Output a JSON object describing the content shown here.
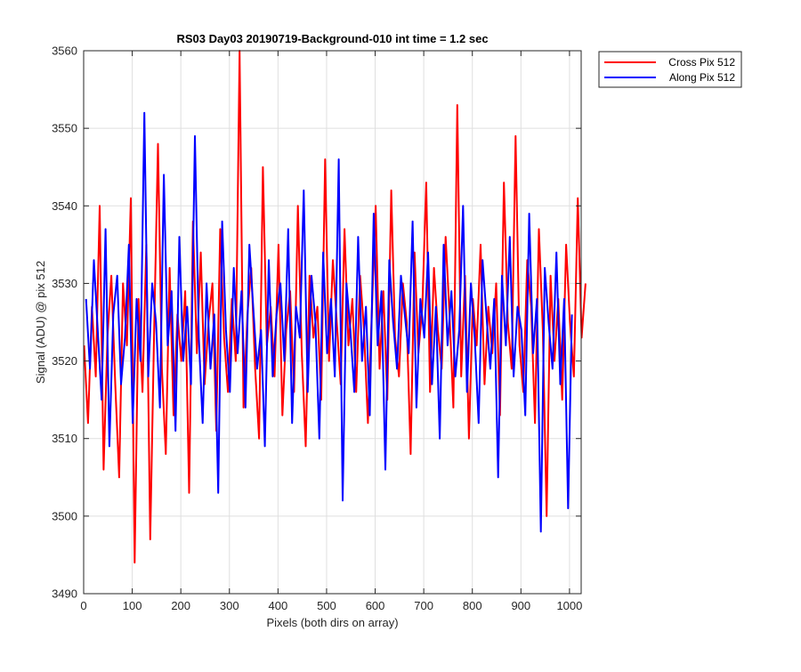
{
  "chart_data": {
    "type": "line",
    "title": "RS03 Day03 20190719-Background-010 int time = 1.2 sec",
    "xlabel": "Pixels (both dirs on array)",
    "ylabel": "Signal (ADU) @ pix 512",
    "xlim": [
      0,
      1024
    ],
    "ylim": [
      3490,
      3560
    ],
    "xticks": [
      0,
      100,
      200,
      300,
      400,
      500,
      600,
      700,
      800,
      900,
      1000
    ],
    "yticks": [
      3490,
      3500,
      3510,
      3520,
      3530,
      3540,
      3550,
      3560
    ],
    "grid": true,
    "legend_position": "outside-top-right",
    "series": [
      {
        "name": "Cross Pix 512",
        "color": "#ff0000",
        "x_start": 1,
        "x_step": 8,
        "values": [
          3522,
          3512,
          3527,
          3518,
          3540,
          3506,
          3523,
          3531,
          3517,
          3505,
          3530,
          3522,
          3541,
          3494,
          3528,
          3516,
          3535,
          3497,
          3524,
          3548,
          3519,
          3508,
          3532,
          3513,
          3526,
          3520,
          3529,
          3503,
          3538,
          3521,
          3534,
          3517,
          3525,
          3530,
          3511,
          3537,
          3523,
          3516,
          3528,
          3520,
          3560,
          3514,
          3526,
          3532,
          3519,
          3510,
          3545,
          3522,
          3527,
          3518,
          3535,
          3513,
          3524,
          3529,
          3516,
          3540,
          3521,
          3509,
          3531,
          3523,
          3527,
          3515,
          3546,
          3520,
          3533,
          3525,
          3517,
          3537,
          3522,
          3528,
          3516,
          3531,
          3524,
          3512,
          3526,
          3540,
          3519,
          3529,
          3515,
          3542,
          3523,
          3518,
          3530,
          3525,
          3508,
          3534,
          3521,
          3527,
          3543,
          3516,
          3532,
          3524,
          3519,
          3536,
          3526,
          3514,
          3553,
          3518,
          3531,
          3510,
          3528,
          3522,
          3535,
          3517,
          3527,
          3521,
          3530,
          3513,
          3543,
          3525,
          3519,
          3549,
          3522,
          3516,
          3533,
          3527,
          3512,
          3537,
          3524,
          3500,
          3531,
          3520,
          3528,
          3515,
          3535,
          3525,
          3518,
          3541,
          3523,
          3530
        ]
      },
      {
        "name": "Along Pix 512",
        "color": "#0000ff",
        "x_start": 5,
        "x_step": 8,
        "values": [
          3528,
          3519,
          3533,
          3524,
          3515,
          3537,
          3509,
          3526,
          3531,
          3517,
          3523,
          3535,
          3512,
          3528,
          3520,
          3552,
          3518,
          3530,
          3525,
          3514,
          3544,
          3522,
          3529,
          3511,
          3536,
          3520,
          3527,
          3517,
          3549,
          3523,
          3512,
          3530,
          3519,
          3526,
          3503,
          3538,
          3524,
          3516,
          3532,
          3521,
          3529,
          3514,
          3535,
          3527,
          3519,
          3524,
          3509,
          3533,
          3518,
          3526,
          3530,
          3520,
          3537,
          3512,
          3527,
          3523,
          3542,
          3516,
          3531,
          3525,
          3510,
          3534,
          3521,
          3528,
          3518,
          3546,
          3502,
          3530,
          3524,
          3516,
          3536,
          3520,
          3527,
          3513,
          3539,
          3522,
          3529,
          3506,
          3533,
          3525,
          3519,
          3531,
          3526,
          3521,
          3538,
          3514,
          3528,
          3523,
          3534,
          3517,
          3527,
          3510,
          3535,
          3522,
          3529,
          3518,
          3524,
          3540,
          3516,
          3530,
          3523,
          3512,
          3533,
          3526,
          3519,
          3528,
          3505,
          3531,
          3522,
          3536,
          3518,
          3527,
          3524,
          3513,
          3539,
          3521,
          3528,
          3498,
          3532,
          3525,
          3519,
          3534,
          3517,
          3528,
          3501,
          3526
        ]
      }
    ]
  }
}
